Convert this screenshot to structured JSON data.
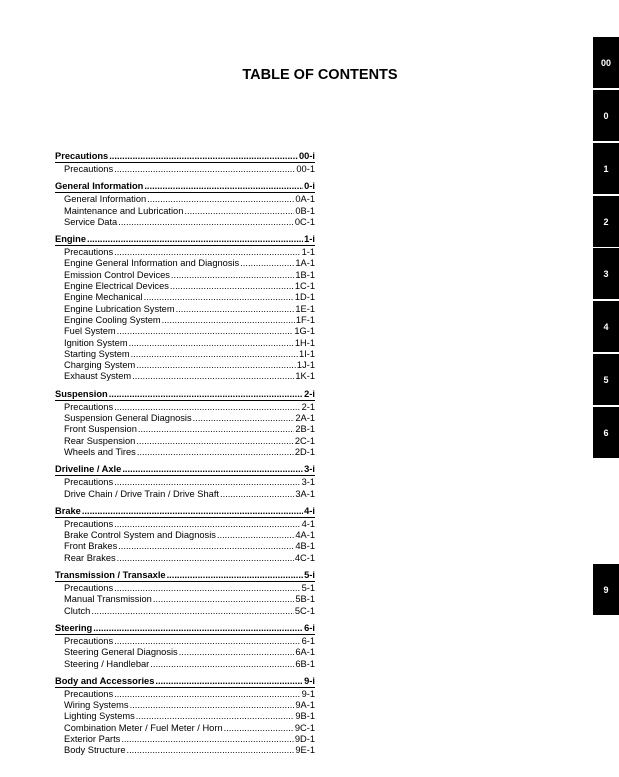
{
  "title": "TABLE OF CONTENTS",
  "sections": [
    {
      "title": "Precautions",
      "page": "00-i",
      "items": [
        {
          "label": "Precautions",
          "page": "00-1"
        }
      ]
    },
    {
      "title": "General Information",
      "page": "0-i",
      "items": [
        {
          "label": "General Information",
          "page": "0A-1"
        },
        {
          "label": "Maintenance and Lubrication",
          "page": "0B-1"
        },
        {
          "label": "Service Data",
          "page": "0C-1"
        }
      ]
    },
    {
      "title": "Engine",
      "page": "1-i",
      "items": [
        {
          "label": "Precautions",
          "page": "1-1"
        },
        {
          "label": "Engine General Information and Diagnosis",
          "page": "1A-1"
        },
        {
          "label": "Emission Control Devices",
          "page": "1B-1"
        },
        {
          "label": "Engine Electrical Devices",
          "page": "1C-1"
        },
        {
          "label": "Engine Mechanical",
          "page": "1D-1"
        },
        {
          "label": "Engine Lubrication System",
          "page": "1E-1"
        },
        {
          "label": "Engine Cooling System",
          "page": "1F-1"
        },
        {
          "label": "Fuel System",
          "page": "1G-1"
        },
        {
          "label": "Ignition System",
          "page": "1H-1"
        },
        {
          "label": "Starting System",
          "page": "1I-1"
        },
        {
          "label": "Charging System",
          "page": "1J-1"
        },
        {
          "label": "Exhaust System",
          "page": "1K-1"
        }
      ]
    },
    {
      "title": "Suspension",
      "page": "2-i",
      "items": [
        {
          "label": "Precautions",
          "page": "2-1"
        },
        {
          "label": "Suspension General Diagnosis",
          "page": "2A-1"
        },
        {
          "label": "Front Suspension",
          "page": "2B-1"
        },
        {
          "label": "Rear Suspension",
          "page": "2C-1"
        },
        {
          "label": "Wheels and Tires",
          "page": "2D-1"
        }
      ]
    },
    {
      "title": "Driveline / Axle",
      "page": "3-i",
      "items": [
        {
          "label": "Precautions",
          "page": "3-1"
        },
        {
          "label": "Drive Chain / Drive Train / Drive Shaft",
          "page": "3A-1"
        }
      ]
    },
    {
      "title": "Brake",
      "page": "4-i",
      "items": [
        {
          "label": "Precautions",
          "page": "4-1"
        },
        {
          "label": "Brake Control System and Diagnosis",
          "page": "4A-1"
        },
        {
          "label": "Front Brakes",
          "page": "4B-1"
        },
        {
          "label": "Rear Brakes",
          "page": "4C-1"
        }
      ]
    },
    {
      "title": "Transmission / Transaxle",
      "page": "5-i",
      "items": [
        {
          "label": "Precautions",
          "page": "5-1"
        },
        {
          "label": "Manual Transmission",
          "page": "5B-1"
        },
        {
          "label": "Clutch",
          "page": "5C-1"
        }
      ]
    },
    {
      "title": "Steering",
      "page": "6-i",
      "items": [
        {
          "label": "Precautions",
          "page": "6-1"
        },
        {
          "label": "Steering General Diagnosis",
          "page": "6A-1"
        },
        {
          "label": "Steering / Handlebar",
          "page": "6B-1"
        }
      ]
    },
    {
      "title": "Body and Accessories",
      "page": "9-i",
      "items": [
        {
          "label": "Precautions",
          "page": "9-1"
        },
        {
          "label": "Wiring Systems",
          "page": "9A-1"
        },
        {
          "label": "Lighting Systems",
          "page": "9B-1"
        },
        {
          "label": "Combination Meter / Fuel Meter / Horn",
          "page": "9C-1"
        },
        {
          "label": "Exterior Parts",
          "page": "9D-1"
        },
        {
          "label": "Body Structure",
          "page": "9E-1"
        }
      ]
    }
  ],
  "tabs": [
    "00",
    "0",
    "1",
    "2",
    "3",
    "4",
    "5",
    "6",
    "9"
  ]
}
